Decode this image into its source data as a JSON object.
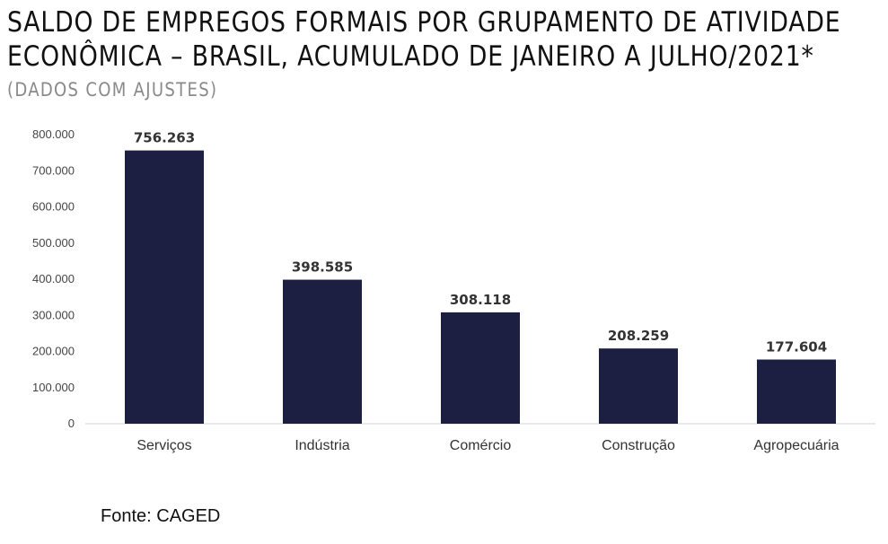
{
  "chart_data": {
    "type": "bar",
    "title_lines": [
      "SALDO DE EMPREGOS FORMAIS POR GRUPAMENTO DE ATIVIDADE",
      "ECONÔMICA – BRASIL, ACUMULADO DE JANEIRO A JULHO/2021*"
    ],
    "subtitle": "(DADOS COM AJUSTES)",
    "categories": [
      "Serviços",
      "Indústria",
      "Comércio",
      "Construção",
      "Agropecuária"
    ],
    "values": [
      756263,
      398585,
      308118,
      208259,
      177604
    ],
    "data_labels": [
      "756.263",
      "398.585",
      "308.118",
      "208.259",
      "177.604"
    ],
    "ylim": [
      0,
      800000
    ],
    "y_ticks": [
      0,
      100000,
      200000,
      300000,
      400000,
      500000,
      600000,
      700000,
      800000
    ],
    "y_tick_labels": [
      "0",
      "100.000",
      "200.000",
      "300.000",
      "400.000",
      "500.000",
      "600.000",
      "700.000",
      "800.000"
    ],
    "bar_color": "#1c1f42",
    "grid": false,
    "legend": "none"
  },
  "source": "Fonte: CAGED"
}
